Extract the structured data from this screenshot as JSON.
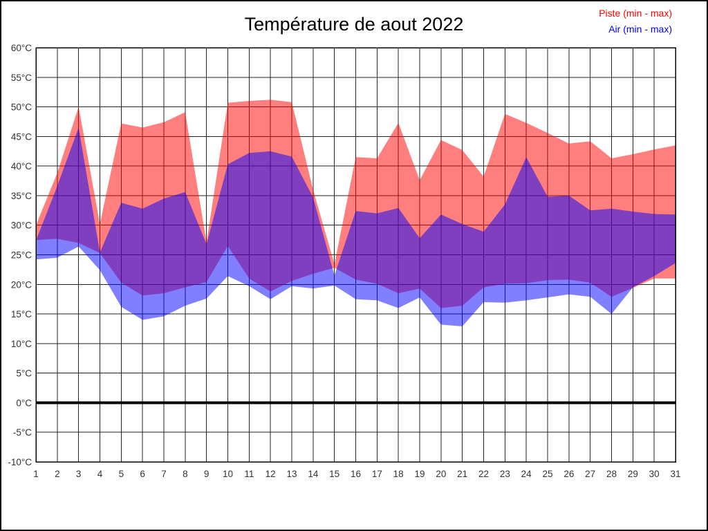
{
  "window": {
    "background": "#ffffff",
    "border_color": "#000000"
  },
  "chart_data": {
    "type": "area",
    "title": "Température de aout 2022",
    "xlabel": "",
    "ylabel": "",
    "x": [
      1,
      2,
      3,
      4,
      5,
      6,
      7,
      8,
      9,
      10,
      11,
      12,
      13,
      14,
      15,
      16,
      17,
      18,
      19,
      20,
      21,
      22,
      23,
      24,
      25,
      26,
      27,
      28,
      29,
      30,
      31
    ],
    "ylim": [
      -10,
      60
    ],
    "ytick_step": 5,
    "ytick_suffix": "°C",
    "grid": true,
    "zero_line_value": 0,
    "legend_position": "top-right",
    "series": [
      {
        "name": "Piste (min - max)",
        "color": "#ff0000",
        "fill_opacity": 0.5,
        "min": [
          27.5,
          27.7,
          27.0,
          25.3,
          20.3,
          18.1,
          18.5,
          19.5,
          20.4,
          26.5,
          21.0,
          18.8,
          20.6,
          21.8,
          22.8,
          20.8,
          20.1,
          18.5,
          19.3,
          16.0,
          16.4,
          19.5,
          20.1,
          20.2,
          20.7,
          20.8,
          20.3,
          17.9,
          19.4,
          21.0,
          21.0
        ],
        "max": [
          30.0,
          38.8,
          50.0,
          30.2,
          47.2,
          46.5,
          47.4,
          49.1,
          27.1,
          50.7,
          51.0,
          51.2,
          50.8,
          36.0,
          23.4,
          41.5,
          41.3,
          47.3,
          37.6,
          44.4,
          42.7,
          38.2,
          48.8,
          47.3,
          45.6,
          43.8,
          44.2,
          41.3,
          42.0,
          42.8,
          43.5
        ]
      },
      {
        "name": "Air (min - max)",
        "color": "#0000ff",
        "fill_opacity": 0.5,
        "min": [
          24.2,
          24.5,
          26.4,
          22.4,
          16.2,
          14.0,
          14.6,
          16.4,
          17.6,
          21.4,
          19.7,
          17.5,
          19.7,
          19.3,
          19.8,
          17.5,
          17.3,
          16.0,
          17.8,
          13.2,
          12.9,
          17.0,
          16.9,
          17.3,
          17.8,
          18.3,
          17.9,
          15.0,
          19.5,
          21.4,
          23.6
        ],
        "max": [
          27.4,
          36.6,
          46.5,
          25.4,
          33.8,
          32.8,
          34.5,
          35.6,
          26.8,
          40.3,
          42.2,
          42.5,
          41.6,
          34.7,
          21.5,
          32.4,
          32.0,
          32.9,
          27.8,
          31.8,
          30.2,
          28.9,
          33.5,
          41.5,
          34.8,
          35.0,
          32.5,
          32.8,
          32.3,
          31.9,
          31.8
        ]
      }
    ]
  },
  "legend": {
    "piste_label": "Piste (min - max)",
    "piste_color": "#ff0000",
    "air_label": "Air (min - max)",
    "air_color": "#0000ff"
  },
  "style": {
    "gridline_color": "#222222",
    "frame_color": "#000000",
    "zero_line_color": "#000000",
    "tick_label_color": "#333333"
  }
}
